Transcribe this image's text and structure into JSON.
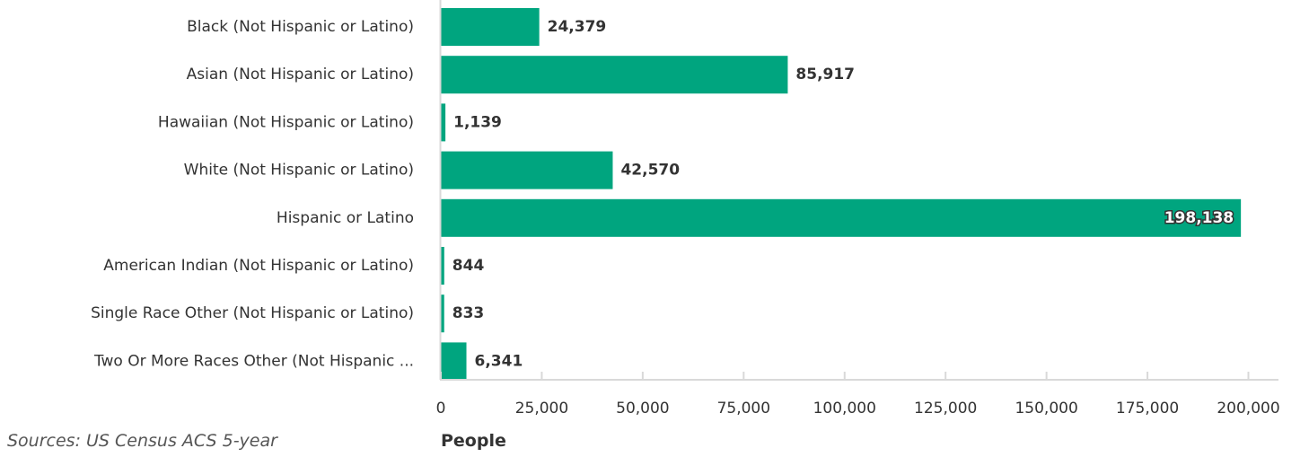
{
  "chart_data": {
    "type": "bar",
    "orientation": "horizontal",
    "categories": [
      "Black (Not Hispanic or Latino)",
      "Asian (Not Hispanic or Latino)",
      "Hawaiian (Not Hispanic or Latino)",
      "White (Not Hispanic or Latino)",
      "Hispanic or Latino",
      "American Indian (Not Hispanic or Latino)",
      "Single Race Other (Not Hispanic or Latino)",
      "Two Or More Races Other (Not Hispanic ..."
    ],
    "values": [
      24379,
      85917,
      1139,
      42570,
      198138,
      844,
      833,
      6341
    ],
    "value_labels": [
      "24,379",
      "85,917",
      "1,139",
      "42,570",
      "198,138",
      "844",
      "833",
      "6,341"
    ],
    "xlabel": "People",
    "xlim": [
      0,
      207000
    ],
    "xticks": [
      0,
      25000,
      50000,
      75000,
      100000,
      125000,
      150000,
      175000,
      200000
    ],
    "xtick_labels": [
      "0",
      "25,000",
      "50,000",
      "75,000",
      "100,000",
      "125,000",
      "150,000",
      "175,000",
      "200,000"
    ],
    "grid": false,
    "bar_color": "#00A57F",
    "axis_color": "#D9D9D9"
  },
  "footer": {
    "source": "Sources: US Census ACS 5-year"
  }
}
